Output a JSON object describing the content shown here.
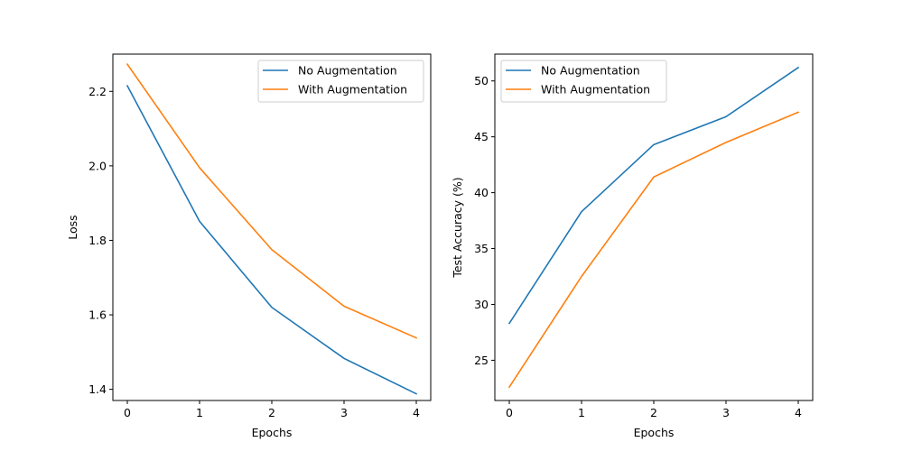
{
  "chart_data": [
    {
      "type": "line",
      "xlabel": "Epochs",
      "ylabel": "Loss",
      "x": [
        0,
        1,
        2,
        3,
        4
      ],
      "xlim": [
        -0.2,
        4.2
      ],
      "ylim": [
        1.37,
        2.3
      ],
      "xticks": [
        0,
        1,
        2,
        3,
        4
      ],
      "yticks": [
        1.4,
        1.6,
        1.8,
        2.0,
        2.2
      ],
      "ytick_labels": [
        "1.4",
        "1.6",
        "1.8",
        "2.0",
        "2.2"
      ],
      "grid": false,
      "legend": "upper right",
      "series": [
        {
          "name": "No Augmentation",
          "color": "#1f77b4",
          "values": [
            2.215,
            1.851,
            1.62,
            1.483,
            1.388
          ]
        },
        {
          "name": "With Augmentation",
          "color": "#ff7f0e",
          "values": [
            2.273,
            1.995,
            1.775,
            1.623,
            1.538
          ]
        }
      ]
    },
    {
      "type": "line",
      "xlabel": "Epochs",
      "ylabel": "Test Accuracy (%)",
      "x": [
        0,
        1,
        2,
        3,
        4
      ],
      "xlim": [
        -0.2,
        4.2
      ],
      "ylim": [
        21.4,
        52.4
      ],
      "xticks": [
        0,
        1,
        2,
        3,
        4
      ],
      "yticks": [
        25,
        30,
        35,
        40,
        45,
        50
      ],
      "ytick_labels": [
        "25",
        "30",
        "35",
        "40",
        "45",
        "50"
      ],
      "grid": false,
      "legend": "upper left",
      "series": [
        {
          "name": "No Augmentation",
          "color": "#1f77b4",
          "values": [
            28.3,
            38.3,
            44.3,
            46.8,
            51.2
          ]
        },
        {
          "name": "With Augmentation",
          "color": "#ff7f0e",
          "values": [
            22.6,
            32.5,
            41.4,
            44.5,
            47.2
          ]
        }
      ]
    }
  ]
}
